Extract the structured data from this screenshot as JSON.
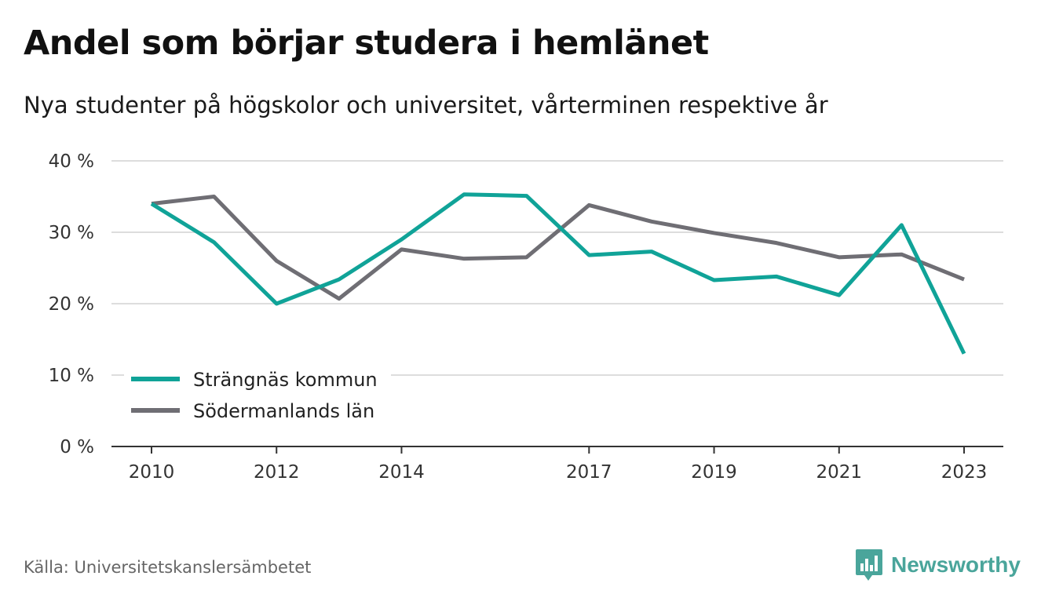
{
  "title": "Andel som börjar studera i hemlänet",
  "subtitle": "Nya studenter på högskolor och universitet, vårterminen respektive år",
  "source": "Källa: Universitetskanslersämbetet",
  "brand": {
    "name": "Newsworthy",
    "icon": "newsworthy-logo-icon",
    "color": "#4aa59b"
  },
  "chart_data": {
    "type": "line",
    "x": [
      2010,
      2011,
      2012,
      2013,
      2014,
      2015,
      2016,
      2017,
      2018,
      2019,
      2020,
      2021,
      2022,
      2023
    ],
    "x_tick_values": [
      2010,
      2012,
      2014,
      2017,
      2019,
      2021,
      2023
    ],
    "x_tick_labels": [
      "2010",
      "2012",
      "2014",
      "2017",
      "2019",
      "2021",
      "2023"
    ],
    "y_ticks": [
      0,
      10,
      20,
      30,
      40
    ],
    "y_tick_labels": [
      "0 %",
      "10 %",
      "20 %",
      "30 %",
      "40 %"
    ],
    "ylim": [
      0,
      40
    ],
    "grid": true,
    "legend_position": "bottom-left",
    "series": [
      {
        "name": "Strängnäs kommun",
        "color": "#10a398",
        "values": [
          34.0,
          28.6,
          20.0,
          23.4,
          29.0,
          35.3,
          35.1,
          26.8,
          27.3,
          23.3,
          23.8,
          21.2,
          31.0,
          13.0
        ]
      },
      {
        "name": "Södermanlands län",
        "color": "#6f6e74",
        "values": [
          34.0,
          35.0,
          26.0,
          20.7,
          27.6,
          26.3,
          26.5,
          33.8,
          31.5,
          29.9,
          28.5,
          26.5,
          26.9,
          23.4
        ]
      }
    ]
  }
}
